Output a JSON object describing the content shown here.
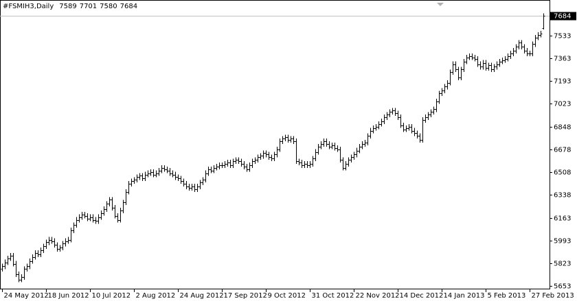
{
  "chart_data": {
    "type": "ohlc",
    "symbol": "#FSMIH3,Daily",
    "color": "#000000",
    "price_line": true,
    "ylim": [
      5632,
      7802
    ],
    "yticks": [
      5653,
      5823,
      5993,
      6163,
      6338,
      6508,
      6678,
      6848,
      7023,
      7193,
      7363,
      7533
    ],
    "xlim": [
      -0.75,
      199.25
    ],
    "xticks": [
      {
        "value": 0,
        "label": "24 May 2012"
      },
      {
        "value": 16,
        "label": "18 Jun 2012"
      },
      {
        "value": 32,
        "label": "10 Jul 2012"
      },
      {
        "value": 48,
        "label": "2 Aug 2012"
      },
      {
        "value": 64,
        "label": "24 Aug 2012"
      },
      {
        "value": 80,
        "label": "17 Sep 2012"
      },
      {
        "value": 96,
        "label": "9 Oct 2012"
      },
      {
        "value": 112,
        "label": "31 Oct 2012"
      },
      {
        "value": 128,
        "label": "22 Nov 2012"
      },
      {
        "value": 144,
        "label": "14 Dec 2012"
      },
      {
        "value": 160,
        "label": "14 Jan 2013"
      },
      {
        "value": 176,
        "label": "5 Feb 2013"
      },
      {
        "value": 192,
        "label": "27 Feb 2013"
      }
    ],
    "open": [
      5780,
      5800,
      5830,
      5860,
      5880,
      5820,
      5740,
      5700,
      5720,
      5780,
      5800,
      5840,
      5870,
      5900,
      5890,
      5920,
      5950,
      5980,
      6000,
      5990,
      5960,
      5930,
      5940,
      5970,
      5990,
      6000,
      6070,
      6110,
      6150,
      6170,
      6190,
      6180,
      6160,
      6170,
      6150,
      6140,
      6170,
      6200,
      6230,
      6270,
      6300,
      6240,
      6180,
      6150,
      6220,
      6280,
      6360,
      6420,
      6440,
      6450,
      6470,
      6480,
      6460,
      6490,
      6500,
      6510,
      6490,
      6500,
      6520,
      6540,
      6530,
      6520,
      6500,
      6490,
      6470,
      6460,
      6440,
      6420,
      6400,
      6390,
      6400,
      6380,
      6400,
      6430,
      6450,
      6500,
      6530,
      6520,
      6540,
      6550,
      6560,
      6560,
      6570,
      6580,
      6560,
      6590,
      6600,
      6590,
      6570,
      6550,
      6530,
      6560,
      6590,
      6600,
      6620,
      6630,
      6650,
      6640,
      6620,
      6610,
      6640,
      6680,
      6740,
      6760,
      6770,
      6750,
      6760,
      6740,
      6590,
      6580,
      6560,
      6570,
      6560,
      6570,
      6610,
      6660,
      6700,
      6720,
      6740,
      6720,
      6700,
      6710,
      6690,
      6680,
      6600,
      6540,
      6570,
      6600,
      6620,
      6640,
      6670,
      6700,
      6720,
      6730,
      6780,
      6820,
      6840,
      6850,
      6870,
      6890,
      6920,
      6940,
      6960,
      6970,
      6950,
      6920,
      6860,
      6830,
      6840,
      6850,
      6820,
      6800,
      6780,
      6750,
      6900,
      6920,
      6940,
      6960,
      6980,
      7040,
      7100,
      7120,
      7150,
      7180,
      7260,
      7320,
      7280,
      7220,
      7280,
      7340,
      7370,
      7380,
      7370,
      7360,
      7320,
      7300,
      7330,
      7290,
      7310,
      7280,
      7300,
      7320,
      7340,
      7350,
      7360,
      7380,
      7400,
      7420,
      7450,
      7480,
      7450,
      7420,
      7400,
      7400,
      7470,
      7520,
      7540,
      7589
    ],
    "high": [
      5820,
      5850,
      5880,
      5900,
      5900,
      5840,
      5760,
      5740,
      5800,
      5820,
      5860,
      5890,
      5920,
      5920,
      5940,
      5970,
      6000,
      6020,
      6020,
      6010,
      5980,
      5960,
      5990,
      6010,
      6020,
      6090,
      6130,
      6170,
      6190,
      6210,
      6210,
      6200,
      6190,
      6190,
      6170,
      6190,
      6220,
      6250,
      6290,
      6320,
      6320,
      6260,
      6200,
      6240,
      6300,
      6380,
      6440,
      6460,
      6470,
      6490,
      6500,
      6500,
      6510,
      6520,
      6530,
      6530,
      6520,
      6540,
      6560,
      6560,
      6550,
      6540,
      6520,
      6510,
      6490,
      6480,
      6460,
      6440,
      6420,
      6420,
      6420,
      6420,
      6450,
      6470,
      6520,
      6550,
      6550,
      6560,
      6570,
      6580,
      6580,
      6590,
      6600,
      6600,
      6610,
      6620,
      6620,
      6610,
      6590,
      6570,
      6580,
      6610,
      6620,
      6640,
      6650,
      6670,
      6670,
      6660,
      6640,
      6660,
      6700,
      6760,
      6780,
      6790,
      6790,
      6780,
      6780,
      6760,
      6610,
      6600,
      6590,
      6590,
      6590,
      6630,
      6680,
      6720,
      6740,
      6760,
      6760,
      6740,
      6730,
      6730,
      6710,
      6700,
      6620,
      6590,
      6620,
      6640,
      6660,
      6690,
      6720,
      6740,
      6750,
      6800,
      6840,
      6860,
      6870,
      6890,
      6910,
      6940,
      6960,
      6980,
      6990,
      6990,
      6970,
      6940,
      6880,
      6860,
      6870,
      6870,
      6840,
      6820,
      6800,
      6920,
      6940,
      6960,
      6980,
      7000,
      7060,
      7120,
      7140,
      7170,
      7200,
      7280,
      7340,
      7340,
      7300,
      7300,
      7360,
      7390,
      7400,
      7400,
      7390,
      7380,
      7340,
      7350,
      7350,
      7330,
      7330,
      7320,
      7340,
      7360,
      7370,
      7380,
      7400,
      7420,
      7440,
      7470,
      7500,
      7500,
      7470,
      7440,
      7420,
      7490,
      7540,
      7560,
      7570,
      7701
    ],
    "low": [
      5760,
      5780,
      5810,
      5840,
      5800,
      5720,
      5680,
      5680,
      5700,
      5760,
      5780,
      5820,
      5850,
      5870,
      5870,
      5900,
      5930,
      5960,
      5970,
      5940,
      5910,
      5910,
      5920,
      5950,
      5970,
      5980,
      6050,
      6090,
      6130,
      6150,
      6160,
      6140,
      6140,
      6130,
      6120,
      6120,
      6150,
      6180,
      6210,
      6250,
      6220,
      6160,
      6130,
      6130,
      6200,
      6260,
      6340,
      6400,
      6420,
      6430,
      6450,
      6440,
      6440,
      6470,
      6480,
      6470,
      6470,
      6480,
      6500,
      6510,
      6500,
      6480,
      6470,
      6450,
      6440,
      6420,
      6400,
      6380,
      6370,
      6370,
      6360,
      6360,
      6380,
      6410,
      6430,
      6480,
      6500,
      6500,
      6520,
      6530,
      6540,
      6540,
      6550,
      6540,
      6540,
      6570,
      6570,
      6550,
      6530,
      6510,
      6510,
      6540,
      6570,
      6580,
      6600,
      6610,
      6620,
      6600,
      6590,
      6590,
      6620,
      6660,
      6720,
      6740,
      6730,
      6730,
      6720,
      6570,
      6560,
      6540,
      6540,
      6540,
      6540,
      6550,
      6590,
      6640,
      6680,
      6700,
      6700,
      6680,
      6680,
      6670,
      6660,
      6580,
      6520,
      6520,
      6550,
      6580,
      6600,
      6620,
      6650,
      6680,
      6700,
      6710,
      6760,
      6800,
      6820,
      6830,
      6850,
      6870,
      6900,
      6920,
      6940,
      6930,
      6900,
      6840,
      6810,
      6810,
      6820,
      6800,
      6780,
      6760,
      6730,
      6730,
      6880,
      6900,
      6920,
      6940,
      6960,
      7020,
      7080,
      7100,
      7130,
      7160,
      7240,
      7260,
      7200,
      7200,
      7260,
      7320,
      7350,
      7350,
      7340,
      7300,
      7280,
      7280,
      7270,
      7270,
      7260,
      7260,
      7280,
      7300,
      7320,
      7330,
      7340,
      7360,
      7380,
      7400,
      7430,
      7430,
      7400,
      7380,
      7380,
      7380,
      7450,
      7500,
      7520,
      7580
    ],
    "close": [
      5800,
      5830,
      5860,
      5880,
      5820,
      5740,
      5700,
      5720,
      5780,
      5800,
      5840,
      5870,
      5900,
      5890,
      5920,
      5950,
      5980,
      6000,
      5990,
      5960,
      5930,
      5940,
      5970,
      5990,
      6000,
      6070,
      6110,
      6150,
      6170,
      6190,
      6180,
      6160,
      6170,
      6150,
      6140,
      6170,
      6200,
      6230,
      6270,
      6300,
      6240,
      6180,
      6150,
      6220,
      6280,
      6360,
      6420,
      6440,
      6450,
      6470,
      6480,
      6460,
      6490,
      6500,
      6510,
      6490,
      6500,
      6520,
      6540,
      6530,
      6520,
      6500,
      6490,
      6470,
      6460,
      6440,
      6420,
      6400,
      6390,
      6400,
      6380,
      6400,
      6430,
      6450,
      6500,
      6530,
      6520,
      6540,
      6550,
      6560,
      6560,
      6570,
      6580,
      6560,
      6590,
      6600,
      6590,
      6570,
      6550,
      6530,
      6560,
      6590,
      6600,
      6620,
      6630,
      6650,
      6640,
      6620,
      6610,
      6640,
      6680,
      6740,
      6760,
      6770,
      6750,
      6760,
      6740,
      6590,
      6580,
      6560,
      6570,
      6560,
      6570,
      6610,
      6660,
      6700,
      6720,
      6740,
      6720,
      6700,
      6710,
      6690,
      6680,
      6600,
      6540,
      6570,
      6600,
      6620,
      6640,
      6670,
      6700,
      6720,
      6730,
      6780,
      6820,
      6840,
      6850,
      6870,
      6890,
      6920,
      6940,
      6960,
      6970,
      6950,
      6920,
      6860,
      6830,
      6840,
      6850,
      6820,
      6800,
      6780,
      6750,
      6900,
      6920,
      6940,
      6960,
      6980,
      7040,
      7100,
      7120,
      7150,
      7180,
      7260,
      7320,
      7280,
      7220,
      7280,
      7340,
      7370,
      7380,
      7370,
      7360,
      7320,
      7300,
      7330,
      7290,
      7310,
      7280,
      7300,
      7320,
      7340,
      7350,
      7360,
      7380,
      7400,
      7420,
      7450,
      7480,
      7450,
      7420,
      7400,
      7400,
      7470,
      7520,
      7540,
      7550,
      7684
    ]
  }
}
